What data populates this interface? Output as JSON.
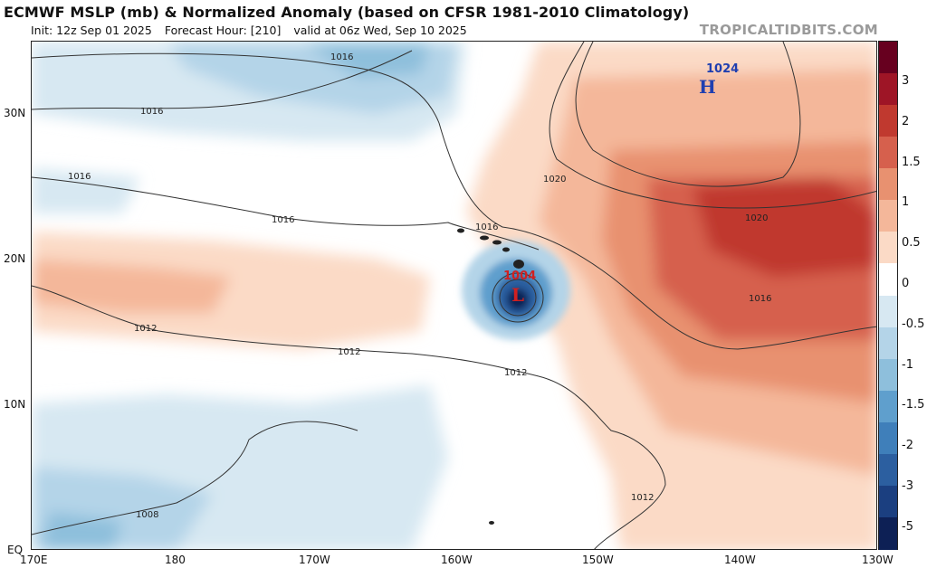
{
  "header": {
    "title": "ECMWF MSLP (mb) & Normalized Anomaly (based on CFSR 1981-2010 Climatology)",
    "init": "Init: 12z Sep 01 2025",
    "forecast_hour": "Forecast Hour: [210]",
    "valid": "valid at 06z Wed, Sep 10 2025",
    "brand": "TROPICALTIDBITS.COM"
  },
  "map": {
    "lat_labels": [
      "30N",
      "20N",
      "10N",
      "EQ"
    ],
    "lon_labels": [
      "170E",
      "180",
      "170W",
      "160W",
      "150W",
      "140W",
      "130W"
    ],
    "isobar_labels": [
      "1016",
      "1016",
      "1016",
      "1016",
      "1016",
      "1020",
      "1020",
      "1016",
      "1012",
      "1012",
      "1012",
      "1012",
      "1008",
      "1016"
    ],
    "systems": [
      {
        "pressure": "1024",
        "letter": "H",
        "color": "#1f3fb0"
      },
      {
        "pressure": "1004",
        "letter": "L",
        "color": "#d02020"
      }
    ]
  },
  "colorbar": {
    "labels": [
      "3",
      "2",
      "1.5",
      "1",
      "0.5",
      "0",
      "-0.5",
      "-1",
      "-1.5",
      "-2",
      "-3",
      "-5"
    ],
    "colors": [
      "#67001f",
      "#9e1526",
      "#c0392f",
      "#d6604d",
      "#e89170",
      "#f4b79a",
      "#fbdac6",
      "#ffffff",
      "#d7e8f2",
      "#b4d4e8",
      "#8ebfdc",
      "#5f9fcd",
      "#3f7fba",
      "#2c5fa0",
      "#1b3f80",
      "#0d2055"
    ]
  }
}
